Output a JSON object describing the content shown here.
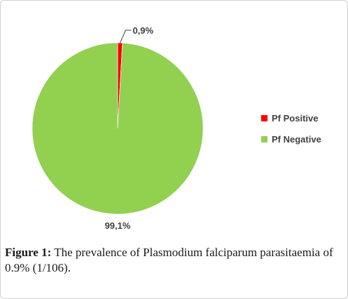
{
  "chart_data": {
    "type": "pie",
    "categories": [
      "Pf Positive",
      "Pf Negative"
    ],
    "values": [
      0.9,
      99.1
    ],
    "data_labels": [
      "0,9%",
      "99,1%"
    ],
    "colors": [
      "#ff0000",
      "#92d050"
    ],
    "legend_position": "right",
    "title": ""
  },
  "caption": {
    "label": "Figure 1:",
    "text": " The prevalence of Plasmodium falciparum parasitaemia of 0.9% (1/106)."
  }
}
